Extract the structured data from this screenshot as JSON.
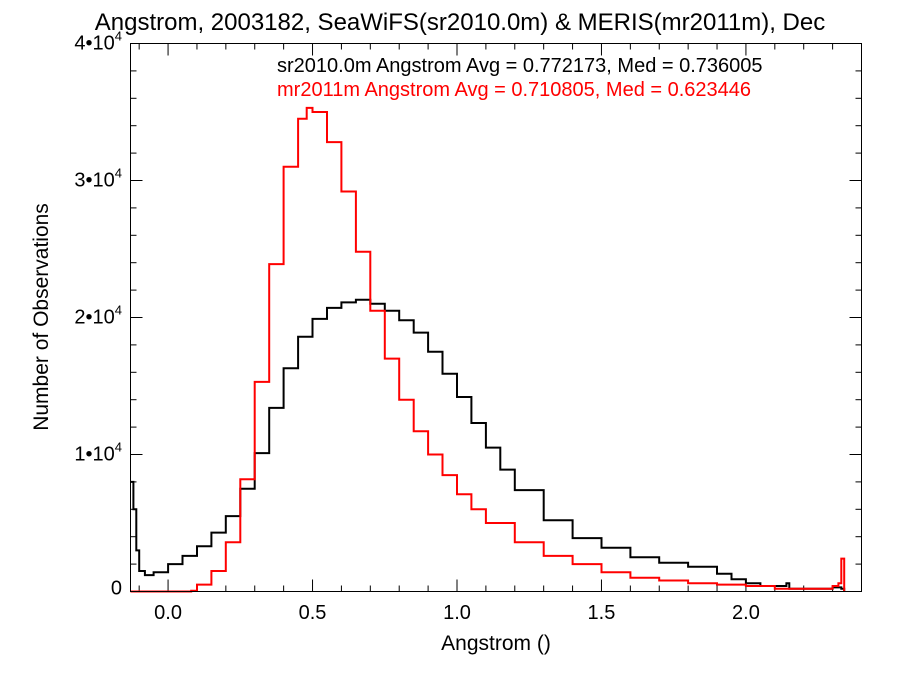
{
  "chart_data": {
    "type": "line",
    "title": "Angstrom, 2003182, SeaWiFS(sr2010.0m) & MERIS(mr2011m), Dec",
    "xlabel": "Angstrom ()",
    "ylabel": "Number of Observations",
    "xlim": [
      -0.13,
      2.4
    ],
    "ylim": [
      0,
      40000
    ],
    "x_ticks": [
      {
        "value": 0.0,
        "label": "0.0"
      },
      {
        "value": 0.5,
        "label": "0.5"
      },
      {
        "value": 1.0,
        "label": "1.0"
      },
      {
        "value": 1.5,
        "label": "1.5"
      },
      {
        "value": 2.0,
        "label": "2.0"
      }
    ],
    "y_ticks": [
      {
        "value": 0,
        "mantissa": "0",
        "exponent": ""
      },
      {
        "value": 10000,
        "mantissa": "1•10",
        "exponent": "4"
      },
      {
        "value": 20000,
        "mantissa": "2•10",
        "exponent": "4"
      },
      {
        "value": 30000,
        "mantissa": "3•10",
        "exponent": "4"
      },
      {
        "value": 40000,
        "mantissa": "4•10",
        "exponent": "4"
      }
    ],
    "grid": false,
    "legend_position": "top",
    "series": [
      {
        "name": "sr2010.0m",
        "color": "#000000",
        "legend_text": "sr2010.0m Angstrom Avg = 0.772173, Med = 0.736005",
        "step": true,
        "x": [
          -0.13,
          -0.12,
          -0.11,
          -0.1,
          -0.08,
          -0.05,
          0.0,
          0.05,
          0.1,
          0.15,
          0.2,
          0.25,
          0.3,
          0.35,
          0.4,
          0.45,
          0.5,
          0.55,
          0.6,
          0.65,
          0.7,
          0.75,
          0.8,
          0.85,
          0.9,
          0.95,
          1.0,
          1.05,
          1.1,
          1.15,
          1.2,
          1.3,
          1.4,
          1.5,
          1.6,
          1.7,
          1.8,
          1.9,
          1.95,
          2.0,
          2.05,
          2.1,
          2.14,
          2.15,
          2.2,
          2.25,
          2.3,
          2.33,
          2.34
        ],
        "y": [
          8000,
          6000,
          3000,
          1500,
          1200,
          1400,
          2000,
          2600,
          3300,
          4300,
          5500,
          7500,
          10100,
          13400,
          16300,
          18600,
          19900,
          20700,
          21100,
          21300,
          21000,
          20500,
          19800,
          18900,
          17500,
          15900,
          14200,
          12300,
          10500,
          8900,
          7400,
          5200,
          3900,
          3200,
          2500,
          2100,
          1800,
          1300,
          900,
          600,
          400,
          400,
          600,
          200,
          200,
          200,
          300,
          200,
          0
        ]
      },
      {
        "name": "mr2011m",
        "color": "#ff0000",
        "legend_text": "mr2011m Angstrom Avg = 0.710805, Med = 0.623446",
        "step": true,
        "x": [
          -0.13,
          0.05,
          0.08,
          0.1,
          0.15,
          0.2,
          0.25,
          0.3,
          0.35,
          0.4,
          0.45,
          0.48,
          0.5,
          0.55,
          0.6,
          0.65,
          0.7,
          0.75,
          0.8,
          0.85,
          0.9,
          0.95,
          1.0,
          1.05,
          1.1,
          1.2,
          1.3,
          1.4,
          1.5,
          1.6,
          1.7,
          1.8,
          1.9,
          2.0,
          2.1,
          2.2,
          2.3,
          2.32,
          2.33,
          2.34
        ],
        "y": [
          0,
          0,
          50,
          500,
          1500,
          3600,
          8200,
          15300,
          23900,
          31000,
          34500,
          35300,
          35000,
          32800,
          29200,
          24800,
          20500,
          17000,
          14000,
          11700,
          10000,
          8500,
          7100,
          6000,
          5000,
          3600,
          2600,
          2000,
          1400,
          1000,
          800,
          600,
          500,
          400,
          200,
          200,
          400,
          600,
          2400,
          0
        ]
      }
    ]
  }
}
